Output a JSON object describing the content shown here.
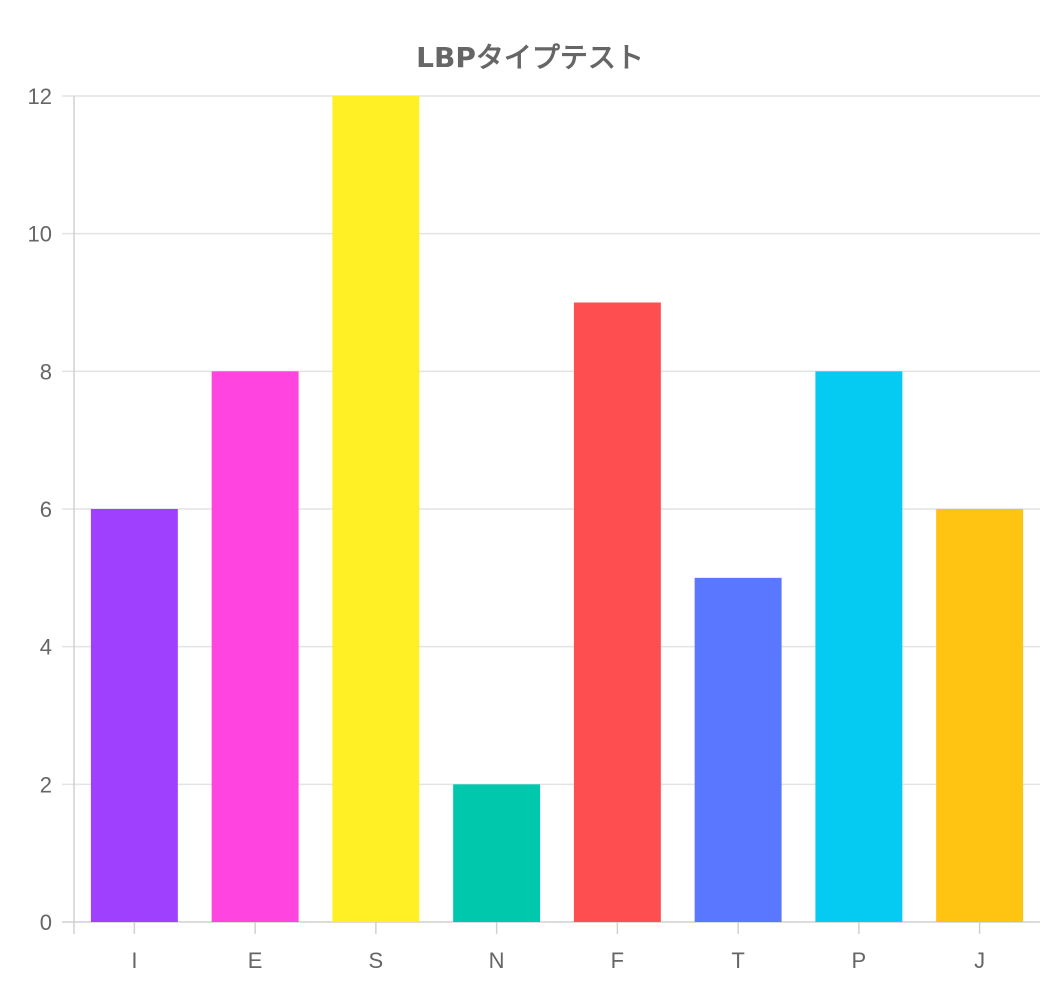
{
  "chart_data": {
    "type": "bar",
    "title": "LBPタイプテスト",
    "categories": [
      "I",
      "E",
      "S",
      "N",
      "F",
      "T",
      "P",
      "J"
    ],
    "values": [
      6,
      8,
      12,
      2,
      9,
      5,
      8,
      6
    ],
    "colors": [
      "#a040ff",
      "#ff44e0",
      "#fff026",
      "#00c8ad",
      "#ff4e50",
      "#5a77ff",
      "#05caf2",
      "#ffc311"
    ],
    "ylim": [
      0,
      12
    ],
    "yticks": [
      0,
      2,
      4,
      6,
      8,
      10,
      12
    ],
    "grid": true,
    "xlabel": "",
    "ylabel": ""
  }
}
